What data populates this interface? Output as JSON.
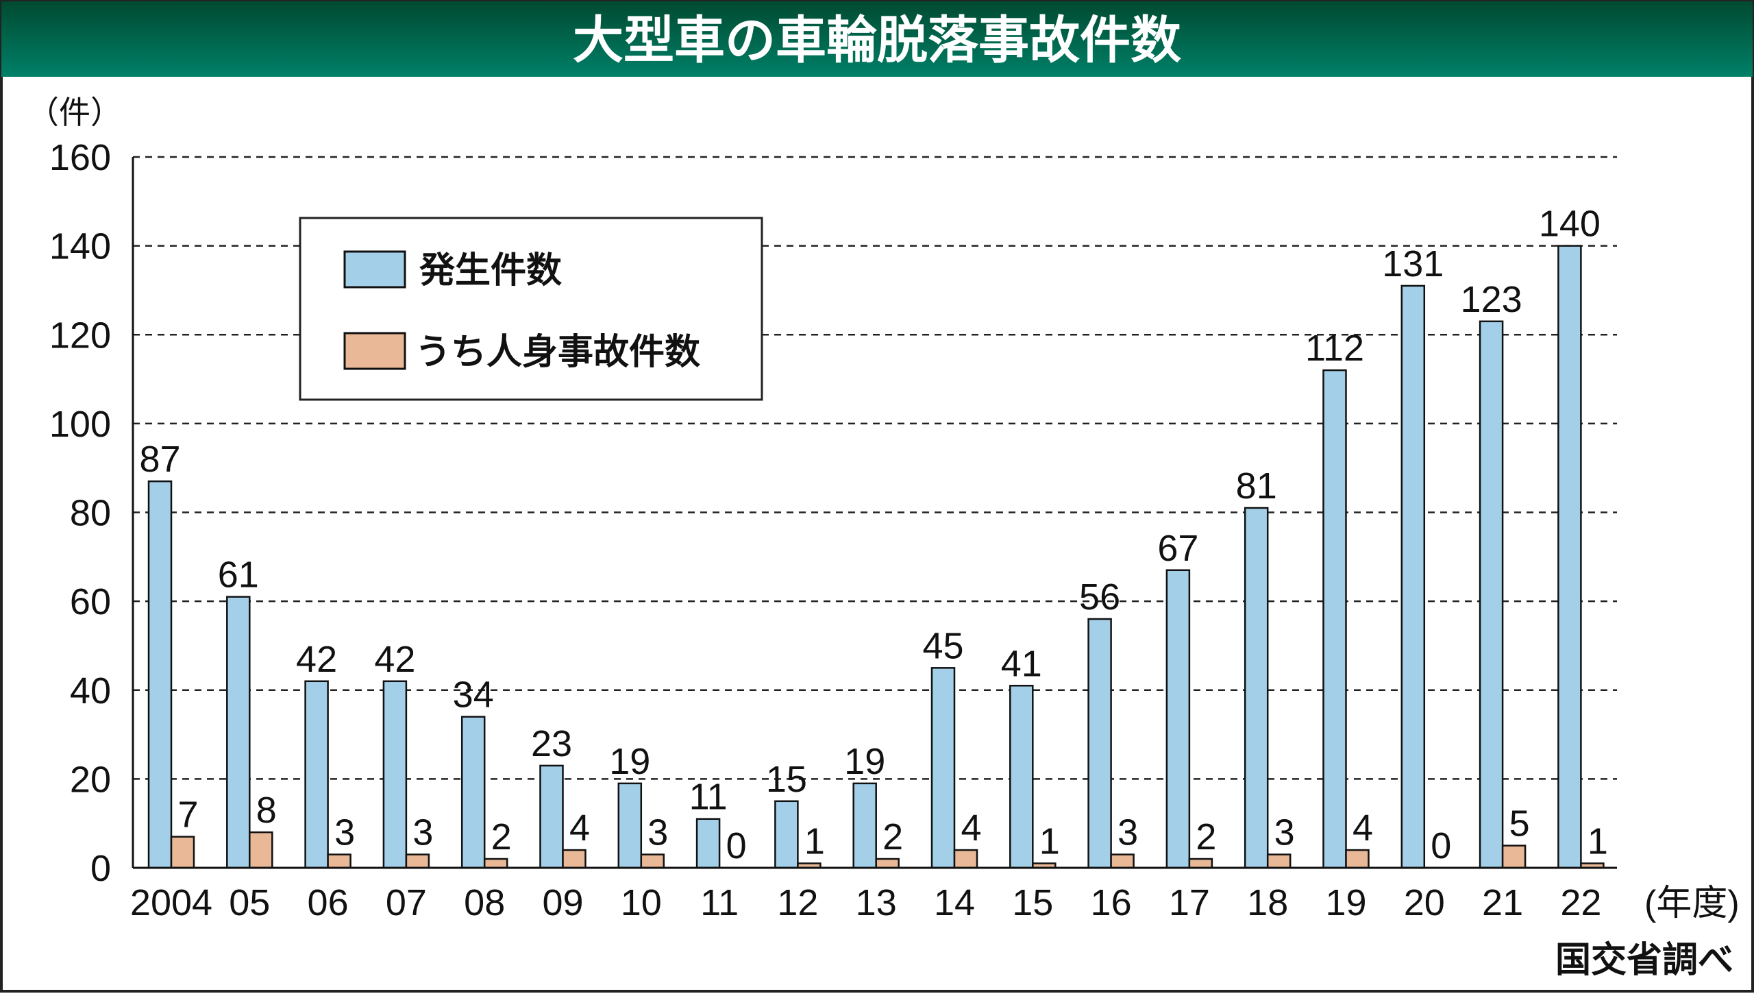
{
  "chart_data": {
    "type": "bar",
    "title": "大型車の車輪脱落事故件数",
    "ylabel": "（件）",
    "xlabel": "(年度)",
    "source": "国交省調べ",
    "ylim": [
      0,
      160
    ],
    "yticks": [
      0,
      20,
      40,
      60,
      80,
      100,
      120,
      140,
      160
    ],
    "grid": true,
    "legend_position": "top-left",
    "categories": [
      "2004",
      "05",
      "06",
      "07",
      "08",
      "09",
      "10",
      "11",
      "12",
      "13",
      "14",
      "15",
      "16",
      "17",
      "18",
      "19",
      "20",
      "21",
      "22"
    ],
    "series": [
      {
        "name": "発生件数",
        "color": "#a3cfe8",
        "values": [
          87,
          61,
          42,
          42,
          34,
          23,
          19,
          11,
          15,
          19,
          45,
          41,
          56,
          67,
          81,
          112,
          131,
          123,
          140
        ]
      },
      {
        "name": "うち人身事故件数",
        "color": "#e8b897",
        "values": [
          7,
          8,
          3,
          3,
          2,
          4,
          3,
          0,
          1,
          2,
          4,
          1,
          3,
          2,
          3,
          4,
          0,
          5,
          1
        ]
      }
    ]
  },
  "colors": {
    "title_bar_top": "#004a30",
    "title_bar_bottom": "#008068"
  }
}
